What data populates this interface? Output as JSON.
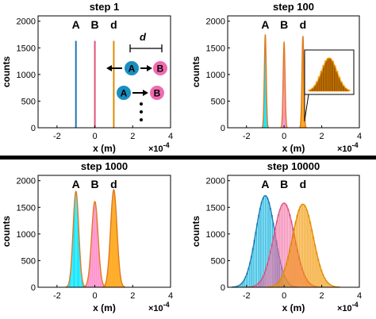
{
  "figure": {
    "colors": {
      "A": "#1f77b4",
      "A_fill": "#00e5ff",
      "B": "#e0527a",
      "B_fill": "#ff88c8",
      "d": "#e08a00",
      "d_fill": "#ff9d00",
      "fit": "#e07a20"
    },
    "divider": true
  },
  "inset": {
    "arrow_labels": {
      "A": "A",
      "B": "B",
      "d": "d"
    },
    "note": "particles A and B separated by distance d; arrows indicate stepping"
  },
  "chart_data": [
    {
      "type": "bar",
      "title": "step 1",
      "xlabel": "x (m)",
      "ylabel": "counts",
      "x_multiplier": "×10^-4",
      "xlim": [
        -3,
        4
      ],
      "ylim": [
        0,
        2100
      ],
      "xticks": [
        -2,
        0,
        2,
        4
      ],
      "yticks": [
        0,
        500,
        1000,
        1500,
        2000
      ],
      "grid": false,
      "series": [
        {
          "name": "A",
          "center": -1.0,
          "sigma": 0.0,
          "peak": 1630
        },
        {
          "name": "B",
          "center": 0.0,
          "sigma": 0.0,
          "peak": 1630
        },
        {
          "name": "d",
          "center": 1.0,
          "sigma": 0.0,
          "peak": 1630
        }
      ],
      "has_diagram": true
    },
    {
      "type": "bar",
      "title": "step 100",
      "xlabel": "x (m)",
      "ylabel": "counts",
      "x_multiplier": "×10^-4",
      "xlim": [
        -3,
        4
      ],
      "ylim": [
        0,
        2100
      ],
      "xticks": [
        -2,
        0,
        2,
        4
      ],
      "yticks": [
        0,
        500,
        1000,
        1500,
        2000
      ],
      "grid": false,
      "series": [
        {
          "name": "A",
          "center": -1.0,
          "sigma": 0.05,
          "peak": 1750
        },
        {
          "name": "B",
          "center": 0.0,
          "sigma": 0.05,
          "peak": 1600
        },
        {
          "name": "d",
          "center": 1.0,
          "sigma": 0.05,
          "peak": 1720
        }
      ],
      "has_zoom_inset": true
    },
    {
      "type": "bar",
      "title": "step 1000",
      "xlabel": "x (m)",
      "ylabel": "counts",
      "x_multiplier": "×10^-4",
      "xlim": [
        -3,
        4
      ],
      "ylim": [
        0,
        2100
      ],
      "xticks": [
        -2,
        0,
        2,
        4
      ],
      "yticks": [
        0,
        500,
        1000,
        1500,
        2000
      ],
      "grid": false,
      "series": [
        {
          "name": "A",
          "center": -1.0,
          "sigma": 0.15,
          "peak": 1800
        },
        {
          "name": "B",
          "center": 0.0,
          "sigma": 0.17,
          "peak": 1610
        },
        {
          "name": "d",
          "center": 1.0,
          "sigma": 0.17,
          "peak": 1830
        }
      ]
    },
    {
      "type": "bar",
      "title": "step 10000",
      "xlabel": "x (m)",
      "ylabel": "counts",
      "x_multiplier": "×10^-4",
      "xlim": [
        -3,
        4
      ],
      "ylim": [
        0,
        2100
      ],
      "xticks": [
        -2,
        0,
        2,
        4
      ],
      "yticks": [
        0,
        500,
        1000,
        1500,
        2000
      ],
      "grid": false,
      "series": [
        {
          "name": "A",
          "center": -1.0,
          "sigma": 0.5,
          "peak": 1720
        },
        {
          "name": "B",
          "center": 0.0,
          "sigma": 0.55,
          "peak": 1580
        },
        {
          "name": "d",
          "center": 1.0,
          "sigma": 0.55,
          "peak": 1560
        }
      ]
    }
  ]
}
